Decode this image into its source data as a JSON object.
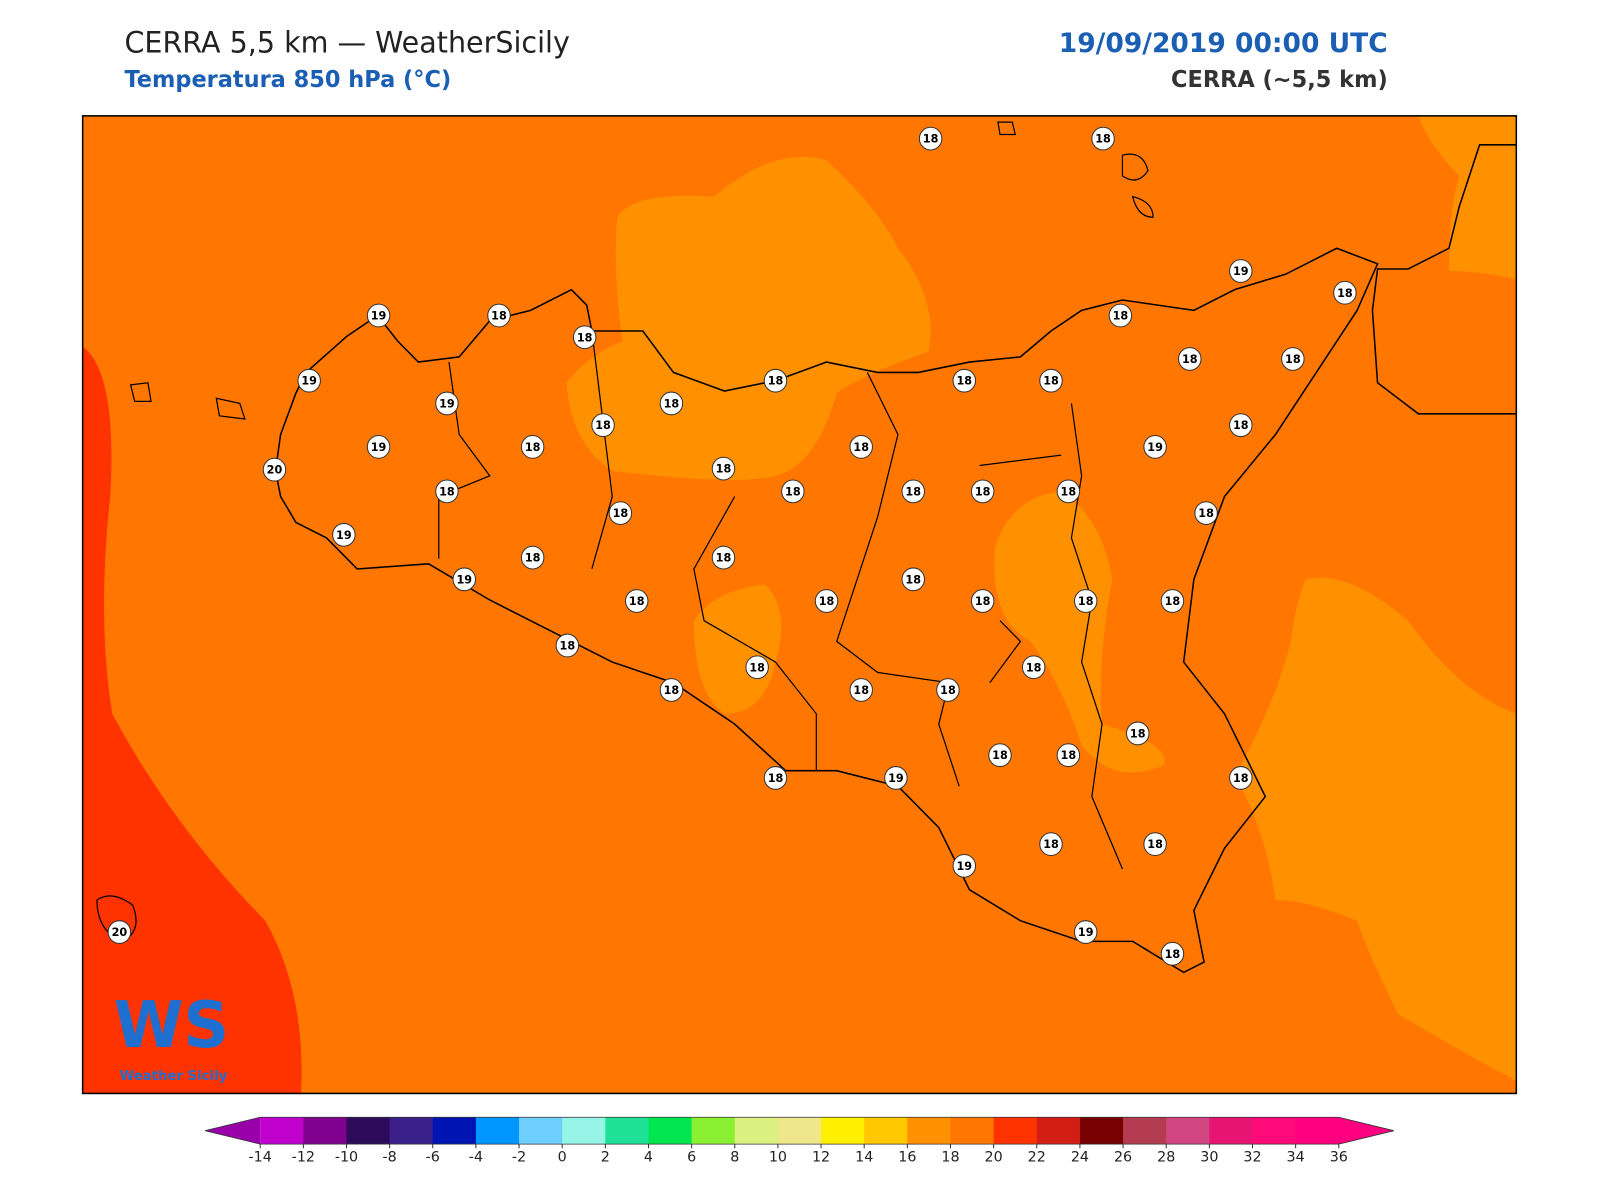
{
  "header": {
    "title": "CERRA 5,5 km — WeatherSicily",
    "subtitle": "Temperatura 850 hPa (°C)",
    "datetime": "19/09/2019 00:00 UTC",
    "model": "CERRA (~5,5 km)"
  },
  "stations": [
    18,
    18,
    19,
    18,
    19,
    18,
    18,
    18,
    19,
    19,
    18,
    18,
    18,
    18,
    18,
    18,
    19,
    18,
    18,
    18,
    18,
    19,
    18,
    20,
    18,
    18,
    18,
    18,
    18,
    18,
    18,
    19,
    18,
    18,
    19,
    18,
    18,
    18,
    18,
    18,
    18,
    18,
    18,
    18,
    18,
    18,
    18,
    18,
    18,
    18,
    18,
    19,
    18,
    18,
    18,
    19,
    19,
    18,
    20
  ],
  "logo": {
    "mark": "WS",
    "text": "Weather Sicily"
  },
  "colorbar": {
    "ticks": [
      -14,
      -12,
      -10,
      -8,
      -6,
      -4,
      -2,
      0,
      2,
      4,
      6,
      8,
      10,
      12,
      14,
      16,
      18,
      20,
      22,
      24,
      26,
      28,
      30,
      32,
      34,
      36
    ],
    "colors": [
      "#c000cc",
      "#800090",
      "#2d0a5a",
      "#3b1f8a",
      "#0014b4",
      "#0096ff",
      "#6ecfff",
      "#96f5e6",
      "#1ee196",
      "#00e650",
      "#8cf032",
      "#dcf082",
      "#f0e68c",
      "#fff000",
      "#ffc800",
      "#ff9000",
      "#ff7700",
      "#ff3300",
      "#d21e14",
      "#780000",
      "#b43c50",
      "#d24682",
      "#e61473",
      "#ff0a78",
      "#ff0080"
    ],
    "under_color": "#9900aa",
    "over_color": "#ff0080"
  }
}
